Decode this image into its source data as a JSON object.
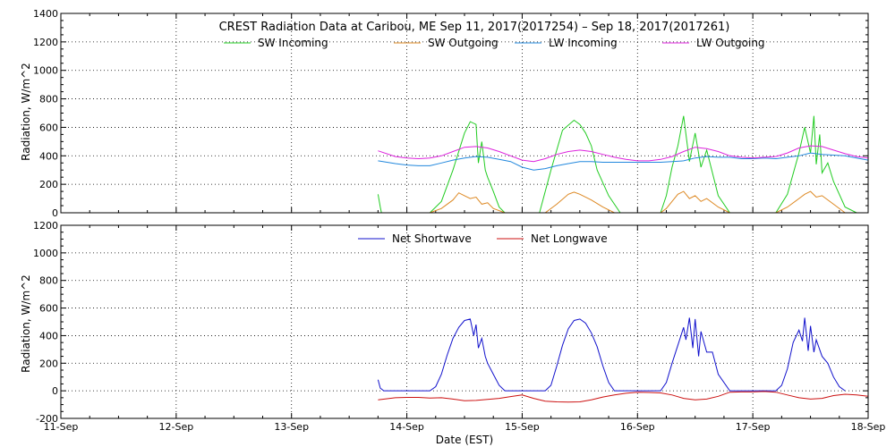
{
  "chart_data": [
    {
      "type": "line",
      "title": "CREST Radiation Data at Caribou, ME   Sep 11, 2017(2017254) – Sep 18, 2017(2017261)",
      "xlabel": "",
      "ylabel": "Radiation, W/m^2",
      "xlim_days": [
        0,
        7
      ],
      "ylim": [
        0,
        1400
      ],
      "yticks": [
        0,
        200,
        400,
        600,
        800,
        1000,
        1200,
        1400
      ],
      "grid": true,
      "legend_position": "top",
      "series": [
        {
          "name": "SW Incoming",
          "color": "#22cc22",
          "x": [
            2.75,
            2.77,
            2.78,
            3.2,
            3.3,
            3.4,
            3.5,
            3.55,
            3.6,
            3.62,
            3.65,
            3.68,
            3.7,
            3.75,
            3.8,
            3.85,
            4.15,
            4.25,
            4.35,
            4.45,
            4.5,
            4.55,
            4.6,
            4.65,
            4.75,
            4.85,
            5.2,
            5.25,
            5.3,
            5.35,
            5.4,
            5.45,
            5.5,
            5.55,
            5.6,
            5.7,
            5.8,
            6.2,
            6.3,
            6.4,
            6.45,
            6.5,
            6.53,
            6.55,
            6.58,
            6.6,
            6.65,
            6.7,
            6.8,
            6.9
          ],
          "y": [
            130,
            40,
            0,
            0,
            80,
            300,
            560,
            640,
            620,
            350,
            500,
            300,
            250,
            150,
            40,
            0,
            0,
            300,
            580,
            650,
            620,
            560,
            470,
            300,
            120,
            0,
            0,
            120,
            320,
            470,
            680,
            360,
            560,
            320,
            440,
            120,
            0,
            0,
            130,
            420,
            600,
            420,
            680,
            340,
            550,
            280,
            350,
            220,
            40,
            0
          ]
        },
        {
          "name": "SW Outgoing",
          "color": "#dd8822",
          "x": [
            3.2,
            3.3,
            3.4,
            3.45,
            3.5,
            3.55,
            3.6,
            3.65,
            3.7,
            3.75,
            3.85,
            4.2,
            4.3,
            4.4,
            4.45,
            4.5,
            4.6,
            4.7,
            4.8,
            5.2,
            5.25,
            5.3,
            5.35,
            5.4,
            5.45,
            5.5,
            5.55,
            5.6,
            5.7,
            5.8,
            6.2,
            6.3,
            6.4,
            6.45,
            6.5,
            6.55,
            6.6,
            6.7,
            6.8
          ],
          "y": [
            0,
            30,
            90,
            140,
            120,
            100,
            110,
            60,
            70,
            30,
            0,
            0,
            60,
            130,
            145,
            130,
            90,
            40,
            0,
            0,
            30,
            80,
            130,
            150,
            100,
            120,
            80,
            100,
            40,
            0,
            0,
            40,
            100,
            130,
            150,
            110,
            120,
            60,
            0
          ]
        },
        {
          "name": "LW Incoming",
          "color": "#2288dd",
          "x": [
            2.75,
            2.9,
            3.0,
            3.1,
            3.2,
            3.3,
            3.4,
            3.5,
            3.6,
            3.7,
            3.8,
            3.9,
            4.0,
            4.1,
            4.2,
            4.3,
            4.4,
            4.5,
            4.6,
            4.7,
            4.8,
            4.9,
            5.0,
            5.1,
            5.2,
            5.3,
            5.4,
            5.5,
            5.6,
            5.7,
            5.8,
            5.9,
            6.0,
            6.1,
            6.2,
            6.3,
            6.4,
            6.5,
            6.6,
            6.7,
            6.8,
            6.9,
            7.0
          ],
          "y": [
            365,
            345,
            335,
            330,
            330,
            350,
            370,
            385,
            395,
            390,
            375,
            360,
            320,
            300,
            310,
            330,
            345,
            360,
            360,
            355,
            355,
            355,
            355,
            355,
            355,
            360,
            365,
            385,
            395,
            390,
            390,
            380,
            380,
            385,
            380,
            390,
            400,
            420,
            410,
            405,
            400,
            385,
            370
          ]
        },
        {
          "name": "LW Outgoing",
          "color": "#dd22dd",
          "x": [
            2.75,
            2.9,
            3.0,
            3.1,
            3.2,
            3.3,
            3.4,
            3.5,
            3.6,
            3.7,
            3.8,
            3.9,
            4.0,
            4.1,
            4.2,
            4.3,
            4.4,
            4.5,
            4.6,
            4.7,
            4.8,
            4.9,
            5.0,
            5.1,
            5.2,
            5.3,
            5.4,
            5.5,
            5.6,
            5.7,
            5.8,
            5.9,
            6.0,
            6.1,
            6.2,
            6.3,
            6.4,
            6.5,
            6.6,
            6.7,
            6.8,
            6.9,
            7.0
          ],
          "y": [
            435,
            395,
            385,
            380,
            385,
            400,
            430,
            460,
            465,
            455,
            430,
            400,
            370,
            360,
            380,
            410,
            430,
            440,
            430,
            410,
            390,
            375,
            365,
            365,
            375,
            395,
            430,
            460,
            450,
            430,
            400,
            390,
            385,
            390,
            395,
            420,
            455,
            470,
            465,
            440,
            415,
            395,
            385
          ]
        }
      ]
    },
    {
      "type": "line",
      "title": "",
      "xlabel": "Date (EST)",
      "ylabel": "Radiation, W/m^2",
      "xlim_days": [
        0,
        7
      ],
      "ylim": [
        -200,
        1200
      ],
      "yticks": [
        -200,
        0,
        200,
        400,
        600,
        800,
        1000,
        1200
      ],
      "xticks": [
        "11-Sep",
        "12-Sep",
        "13-Sep",
        "14-Sep",
        "15-Sep",
        "16-Sep",
        "17-Sep",
        "18-Sep"
      ],
      "grid": true,
      "legend_position": "top",
      "series": [
        {
          "name": "Net Shortwave",
          "color": "#1111cc",
          "x": [
            2.75,
            2.77,
            2.8,
            3.2,
            3.25,
            3.3,
            3.35,
            3.4,
            3.45,
            3.5,
            3.55,
            3.58,
            3.6,
            3.62,
            3.65,
            3.68,
            3.7,
            3.75,
            3.8,
            3.85,
            4.2,
            4.25,
            4.3,
            4.35,
            4.4,
            4.45,
            4.5,
            4.55,
            4.6,
            4.65,
            4.7,
            4.75,
            4.8,
            5.2,
            5.25,
            5.3,
            5.35,
            5.4,
            5.42,
            5.45,
            5.48,
            5.5,
            5.53,
            5.55,
            5.6,
            5.65,
            5.7,
            5.8,
            6.2,
            6.25,
            6.3,
            6.35,
            6.4,
            6.43,
            6.45,
            6.48,
            6.5,
            6.53,
            6.55,
            6.6,
            6.65,
            6.7,
            6.75,
            6.8
          ],
          "y": [
            80,
            20,
            0,
            0,
            30,
            120,
            260,
            380,
            460,
            510,
            520,
            400,
            480,
            310,
            380,
            250,
            200,
            120,
            40,
            0,
            0,
            40,
            180,
            330,
            450,
            510,
            520,
            490,
            420,
            320,
            180,
            60,
            0,
            0,
            60,
            200,
            330,
            460,
            370,
            530,
            310,
            520,
            250,
            430,
            280,
            280,
            120,
            0,
            0,
            40,
            160,
            350,
            440,
            360,
            530,
            290,
            470,
            280,
            370,
            250,
            200,
            100,
            30,
            0
          ]
        },
        {
          "name": "Net Longwave",
          "color": "#cc1111",
          "x": [
            2.75,
            2.9,
            3.0,
            3.1,
            3.2,
            3.3,
            3.4,
            3.5,
            3.6,
            3.7,
            3.8,
            3.9,
            4.0,
            4.1,
            4.2,
            4.3,
            4.4,
            4.5,
            4.6,
            4.7,
            4.8,
            4.9,
            5.0,
            5.1,
            5.2,
            5.3,
            5.4,
            5.5,
            5.6,
            5.7,
            5.8,
            5.9,
            6.0,
            6.1,
            6.2,
            6.3,
            6.4,
            6.5,
            6.6,
            6.7,
            6.8,
            6.9,
            7.0
          ],
          "y": [
            -65,
            -50,
            -48,
            -48,
            -52,
            -50,
            -60,
            -72,
            -70,
            -62,
            -55,
            -42,
            -30,
            -55,
            -75,
            -80,
            -82,
            -80,
            -65,
            -45,
            -30,
            -18,
            -10,
            -12,
            -15,
            -30,
            -55,
            -65,
            -60,
            -40,
            -10,
            -8,
            -8,
            -5,
            -10,
            -30,
            -50,
            -60,
            -55,
            -35,
            -25,
            -30,
            -40
          ]
        }
      ]
    }
  ],
  "x_ticks": [
    "11-Sep",
    "12-Sep",
    "13-Sep",
    "14-Sep",
    "15-Sep",
    "16-Sep",
    "17-Sep",
    "18-Sep"
  ],
  "top_panel": {
    "title": "CREST Radiation Data at Caribou, ME   Sep 11, 2017(2017254) – Sep 18, 2017(2017261)",
    "ylabel": "Radiation, W/m^2",
    "legend": [
      "SW Incoming",
      "SW Outgoing",
      "LW Incoming",
      "LW Outgoing"
    ]
  },
  "bottom_panel": {
    "ylabel": "Radiation, W/m^2",
    "xlabel": "Date (EST)",
    "legend": [
      "Net Shortwave",
      "Net Longwave"
    ]
  }
}
